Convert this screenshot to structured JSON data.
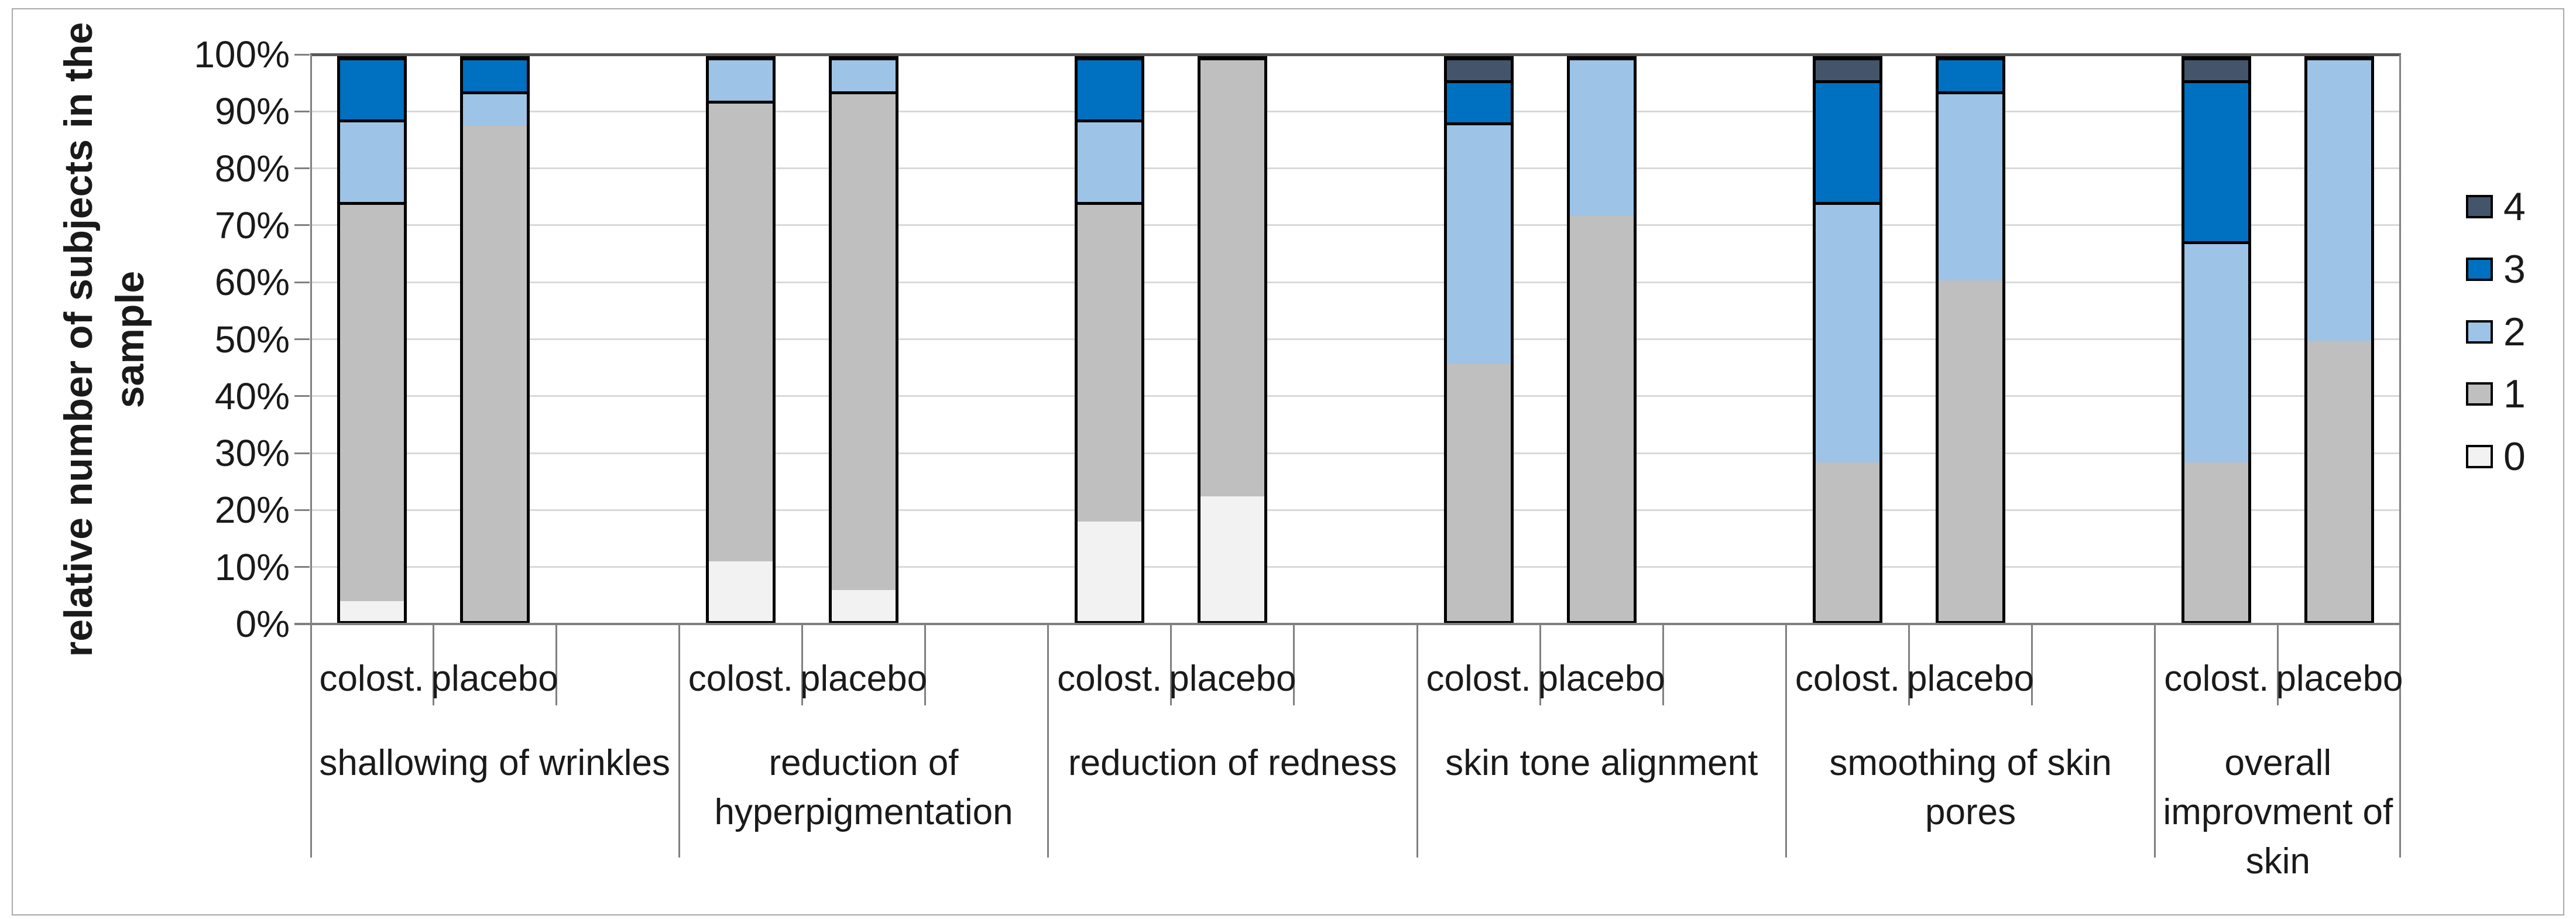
{
  "figure": {
    "background": "#ffffff",
    "border_color": "#a9a9a9"
  },
  "chart_data": {
    "type": "bar",
    "subtype": "stacked-100-percent",
    "title": "",
    "xlabel": "",
    "ylabel": "relative number of subjects in the sample",
    "ylabel_lines": [
      "relative number of subjects in the",
      "sample"
    ],
    "ylim": [
      0,
      100
    ],
    "grid": "horizontal, every 10%",
    "y_ticks_top_to_bottom": [
      "100%",
      "90%",
      "80%",
      "70%",
      "60%",
      "50%",
      "40%",
      "30%",
      "20%",
      "10%",
      "0%"
    ],
    "legend_position": "right",
    "legend": [
      {
        "label": "4",
        "color": "#44546A"
      },
      {
        "label": "3",
        "color": "#0070C0"
      },
      {
        "label": "2",
        "color": "#9DC3E6"
      },
      {
        "label": "1",
        "color": "#BFBFBF"
      },
      {
        "label": "0",
        "color": "#F2F2F2"
      }
    ],
    "series_keys_bottom_to_top": [
      "0",
      "1",
      "2",
      "3",
      "4"
    ],
    "series_colors_bottom_to_top": [
      "#F2F2F2",
      "#BFBFBF",
      "#9DC3E6",
      "#0070C0",
      "#44546A"
    ],
    "groups": [
      {
        "label": "shallowing of wrinkles",
        "bars": [
          {
            "label": "colost.",
            "values": [
              3.6,
              71.4,
              14.3,
              10.7,
              0
            ]
          },
          {
            "label": "placebo",
            "values": [
              0,
              88.9,
              5.6,
              5.6,
              0
            ]
          }
        ]
      },
      {
        "label": "reduction of hyperpigmentation",
        "bars": [
          {
            "label": "colost.",
            "values": [
              10.7,
              82.1,
              7.2,
              0,
              0
            ]
          },
          {
            "label": "placebo",
            "values": [
              5.6,
              88.8,
              5.6,
              0,
              0
            ]
          }
        ]
      },
      {
        "label": "reduction of redness",
        "bars": [
          {
            "label": "colost.",
            "values": [
              17.9,
              57.1,
              14.3,
              10.7,
              0
            ]
          },
          {
            "label": "placebo",
            "values": [
              22.2,
              77.8,
              0,
              0,
              0
            ]
          }
        ]
      },
      {
        "label": "skin tone alignment",
        "bars": [
          {
            "label": "colost.",
            "values": [
              0,
              46.4,
              42.9,
              7.1,
              3.6
            ]
          },
          {
            "label": "placebo",
            "values": [
              0,
              72.2,
              27.8,
              0,
              0
            ]
          }
        ]
      },
      {
        "label": "smoothing of skin pores",
        "bars": [
          {
            "label": "colost.",
            "values": [
              0,
              28.6,
              46.4,
              21.4,
              3.6
            ]
          },
          {
            "label": "placebo",
            "values": [
              0,
              61.1,
              33.3,
              5.6,
              0
            ]
          }
        ]
      },
      {
        "label": "overall improvment of skin",
        "bars": [
          {
            "label": "colost.",
            "values": [
              0,
              28.6,
              39.3,
              28.5,
              3.6
            ]
          },
          {
            "label": "placebo",
            "values": [
              0,
              50,
              50,
              0,
              0
            ]
          }
        ]
      }
    ]
  }
}
